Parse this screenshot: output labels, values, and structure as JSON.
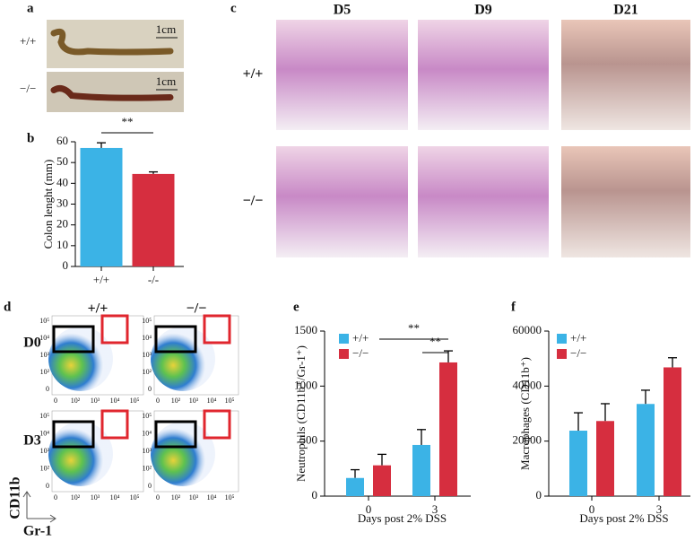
{
  "panel_labels": [
    "a",
    "b",
    "c",
    "d",
    "e",
    "f"
  ],
  "panel_a": {
    "genotypes": [
      "+/+",
      "−/−"
    ],
    "scale_bars": [
      "1cm",
      "1cm"
    ]
  },
  "panel_c": {
    "columns": [
      "D5",
      "D9",
      "D21"
    ],
    "rows": [
      "+/+",
      "−/−"
    ]
  },
  "panel_d": {
    "columns": [
      "+/+",
      "−/−"
    ],
    "rows": [
      "D0",
      "D3"
    ],
    "y_axis": "CD11b",
    "x_axis": "Gr-1",
    "ticks": [
      "0",
      "10²",
      "10³",
      "10⁴",
      "10⁵"
    ]
  },
  "chart_data": [
    {
      "type": "bar",
      "ylabel": "Colon lenght (mm)",
      "categories": [
        "+/+",
        "-/-"
      ],
      "values": [
        57,
        44.5
      ],
      "errors": [
        2.5,
        1
      ],
      "colors": [
        "#3bb3e6",
        "#d62e3f"
      ],
      "ylim": [
        0,
        60
      ],
      "yticks": [
        0,
        10,
        20,
        30,
        40,
        50,
        60
      ],
      "annotations": [
        "**"
      ]
    },
    {
      "type": "grouped-bar",
      "ylabel": "Neutrophils (CD11b⁺/Gr-1⁺)",
      "xlabel": "Days post 2% DSS",
      "categories": [
        "0",
        "3"
      ],
      "series": [
        {
          "name": "+/+",
          "color": "#3bb3e6",
          "values": [
            165,
            465
          ],
          "errors": [
            75,
            140
          ]
        },
        {
          "name": "−/−",
          "color": "#d62e3f",
          "values": [
            280,
            1215
          ],
          "errors": [
            100,
            105
          ]
        }
      ],
      "ylim": [
        0,
        1500
      ],
      "yticks": [
        0,
        500,
        1000,
        1500
      ],
      "legend": "upper left",
      "annotations": [
        "**",
        "**"
      ]
    },
    {
      "type": "grouped-bar",
      "ylabel": "Macrophages (CD11b⁺)",
      "xlabel": "Days post 2% DSS",
      "categories": [
        "0",
        "3"
      ],
      "series": [
        {
          "name": "+/+",
          "color": "#3bb3e6",
          "values": [
            23800,
            33500
          ],
          "errors": [
            6500,
            5000
          ]
        },
        {
          "name": "−/−",
          "color": "#d62e3f",
          "values": [
            27300,
            46800
          ],
          "errors": [
            6300,
            3500
          ]
        }
      ],
      "ylim": [
        0,
        60000
      ],
      "yticks": [
        0,
        20000,
        40000,
        60000
      ],
      "legend": "upper left"
    }
  ]
}
